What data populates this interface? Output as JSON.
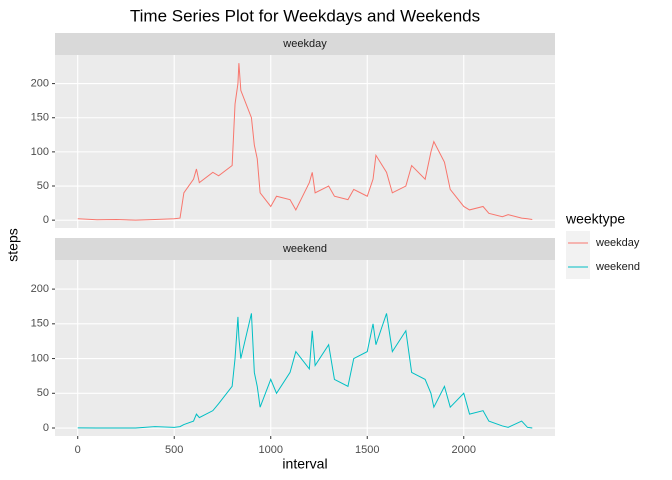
{
  "chart_data": {
    "type": "line",
    "title": "Time Series Plot for Weekdays and Weekends",
    "x_label": "interval",
    "y_label": "steps",
    "legend_title": "weektype",
    "grid": true,
    "x": [
      0,
      100,
      200,
      300,
      400,
      500,
      530,
      550,
      600,
      615,
      630,
      700,
      730,
      800,
      815,
      830,
      835,
      845,
      900,
      915,
      930,
      945,
      1000,
      1030,
      1100,
      1130,
      1200,
      1215,
      1230,
      1300,
      1330,
      1400,
      1430,
      1500,
      1530,
      1545,
      1600,
      1630,
      1700,
      1730,
      1800,
      1830,
      1845,
      1900,
      1930,
      2000,
      2030,
      2100,
      2130,
      2200,
      2230,
      2300,
      2330,
      2355
    ],
    "series": [
      {
        "name": "weekday",
        "color": "#f8766d",
        "values": [
          2,
          0.5,
          1,
          0,
          1,
          2,
          3,
          40,
          60,
          75,
          55,
          70,
          65,
          80,
          170,
          200,
          230,
          190,
          150,
          110,
          90,
          40,
          20,
          35,
          30,
          15,
          55,
          70,
          40,
          50,
          35,
          30,
          45,
          35,
          60,
          95,
          70,
          40,
          50,
          80,
          60,
          100,
          115,
          85,
          45,
          20,
          15,
          20,
          10,
          5,
          8,
          3,
          2,
          1
        ]
      },
      {
        "name": "weekend",
        "color": "#00bfc4",
        "values": [
          0.2,
          0,
          0,
          0,
          2,
          1,
          2,
          5,
          10,
          20,
          15,
          25,
          35,
          60,
          100,
          160,
          130,
          100,
          165,
          80,
          60,
          30,
          70,
          50,
          80,
          110,
          85,
          140,
          90,
          120,
          70,
          60,
          100,
          110,
          150,
          120,
          165,
          110,
          140,
          80,
          70,
          50,
          30,
          60,
          30,
          50,
          20,
          25,
          10,
          3,
          1,
          10,
          1,
          0
        ]
      }
    ],
    "xlim": [
      -117.75,
      2472.75
    ],
    "xticks": [
      0,
      500,
      1000,
      1500,
      2000
    ],
    "ylim": [
      -11.5,
      241.9
    ],
    "yticks": [
      0,
      50,
      100,
      150,
      200
    ]
  }
}
